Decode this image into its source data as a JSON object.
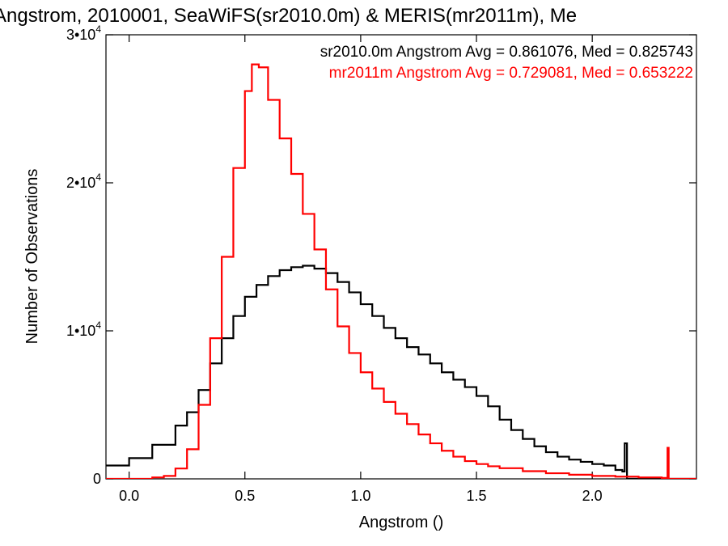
{
  "chart_data": {
    "type": "line",
    "title": "Angstrom, 2010001, SeaWiFS(sr2010.0m) & MERIS(mr2011m), Me",
    "xlabel": "Angstrom ()",
    "ylabel": "Number of Observations",
    "xlim": [
      -0.1,
      2.45
    ],
    "ylim": [
      0,
      30000
    ],
    "x_ticks": [
      {
        "value": 0.0,
        "label": "0.0"
      },
      {
        "value": 0.5,
        "label": "0.5"
      },
      {
        "value": 1.0,
        "label": "1.0"
      },
      {
        "value": 1.5,
        "label": "1.5"
      },
      {
        "value": 2.0,
        "label": "2.0"
      }
    ],
    "y_ticks": [
      {
        "value": 0,
        "base": "0",
        "exp": ""
      },
      {
        "value": 10000,
        "base": "1•10",
        "exp": "4"
      },
      {
        "value": 20000,
        "base": "2•10",
        "exp": "4"
      },
      {
        "value": 30000,
        "base": "3•10",
        "exp": "4"
      }
    ],
    "grid": false,
    "legend_placement": "top-right",
    "series": [
      {
        "label": "sr2010.0m Angstrom Avg = 0.861076, Med = 0.825743",
        "color": "#000000",
        "points": [
          [
            -0.1,
            900
          ],
          [
            0.0,
            1400
          ],
          [
            0.1,
            2300
          ],
          [
            0.2,
            3600
          ],
          [
            0.25,
            4500
          ],
          [
            0.3,
            6000
          ],
          [
            0.35,
            7800
          ],
          [
            0.4,
            9500
          ],
          [
            0.45,
            11000
          ],
          [
            0.5,
            12300
          ],
          [
            0.55,
            13100
          ],
          [
            0.6,
            13700
          ],
          [
            0.65,
            14100
          ],
          [
            0.7,
            14300
          ],
          [
            0.75,
            14400
          ],
          [
            0.8,
            14200
          ],
          [
            0.85,
            13900
          ],
          [
            0.9,
            13300
          ],
          [
            0.95,
            12600
          ],
          [
            1.0,
            11800
          ],
          [
            1.05,
            11000
          ],
          [
            1.1,
            10200
          ],
          [
            1.15,
            9500
          ],
          [
            1.2,
            8900
          ],
          [
            1.25,
            8400
          ],
          [
            1.3,
            7800
          ],
          [
            1.35,
            7200
          ],
          [
            1.4,
            6700
          ],
          [
            1.45,
            6200
          ],
          [
            1.5,
            5600
          ],
          [
            1.55,
            4900
          ],
          [
            1.6,
            4000
          ],
          [
            1.65,
            3300
          ],
          [
            1.7,
            2700
          ],
          [
            1.75,
            2200
          ],
          [
            1.8,
            1800
          ],
          [
            1.85,
            1500
          ],
          [
            1.9,
            1300
          ],
          [
            1.95,
            1150
          ],
          [
            2.0,
            1000
          ],
          [
            2.05,
            900
          ],
          [
            2.1,
            600
          ],
          [
            2.13,
            500
          ],
          [
            2.14,
            2400
          ],
          [
            2.15,
            0
          ],
          [
            2.45,
            0
          ]
        ]
      },
      {
        "label": "mr2011m Angstrom Avg = 0.729081, Med = 0.653222",
        "color": "#ff0000",
        "points": [
          [
            -0.1,
            0
          ],
          [
            0.08,
            0
          ],
          [
            0.1,
            100
          ],
          [
            0.15,
            200
          ],
          [
            0.2,
            700
          ],
          [
            0.25,
            2000
          ],
          [
            0.3,
            5000
          ],
          [
            0.35,
            9500
          ],
          [
            0.4,
            15000
          ],
          [
            0.45,
            21000
          ],
          [
            0.5,
            26200
          ],
          [
            0.53,
            28000
          ],
          [
            0.56,
            27800
          ],
          [
            0.6,
            25600
          ],
          [
            0.65,
            23000
          ],
          [
            0.7,
            20600
          ],
          [
            0.75,
            17900
          ],
          [
            0.8,
            15500
          ],
          [
            0.85,
            12800
          ],
          [
            0.9,
            10300
          ],
          [
            0.95,
            8500
          ],
          [
            1.0,
            7200
          ],
          [
            1.05,
            6100
          ],
          [
            1.1,
            5200
          ],
          [
            1.15,
            4400
          ],
          [
            1.2,
            3700
          ],
          [
            1.25,
            3000
          ],
          [
            1.3,
            2400
          ],
          [
            1.35,
            1900
          ],
          [
            1.4,
            1500
          ],
          [
            1.45,
            1200
          ],
          [
            1.5,
            1000
          ],
          [
            1.55,
            850
          ],
          [
            1.6,
            720
          ],
          [
            1.7,
            520
          ],
          [
            1.8,
            380
          ],
          [
            1.9,
            280
          ],
          [
            2.0,
            200
          ],
          [
            2.1,
            150
          ],
          [
            2.2,
            100
          ],
          [
            2.3,
            60
          ],
          [
            2.32,
            40
          ],
          [
            2.325,
            2100
          ],
          [
            2.33,
            0
          ],
          [
            2.45,
            0
          ]
        ]
      }
    ]
  }
}
